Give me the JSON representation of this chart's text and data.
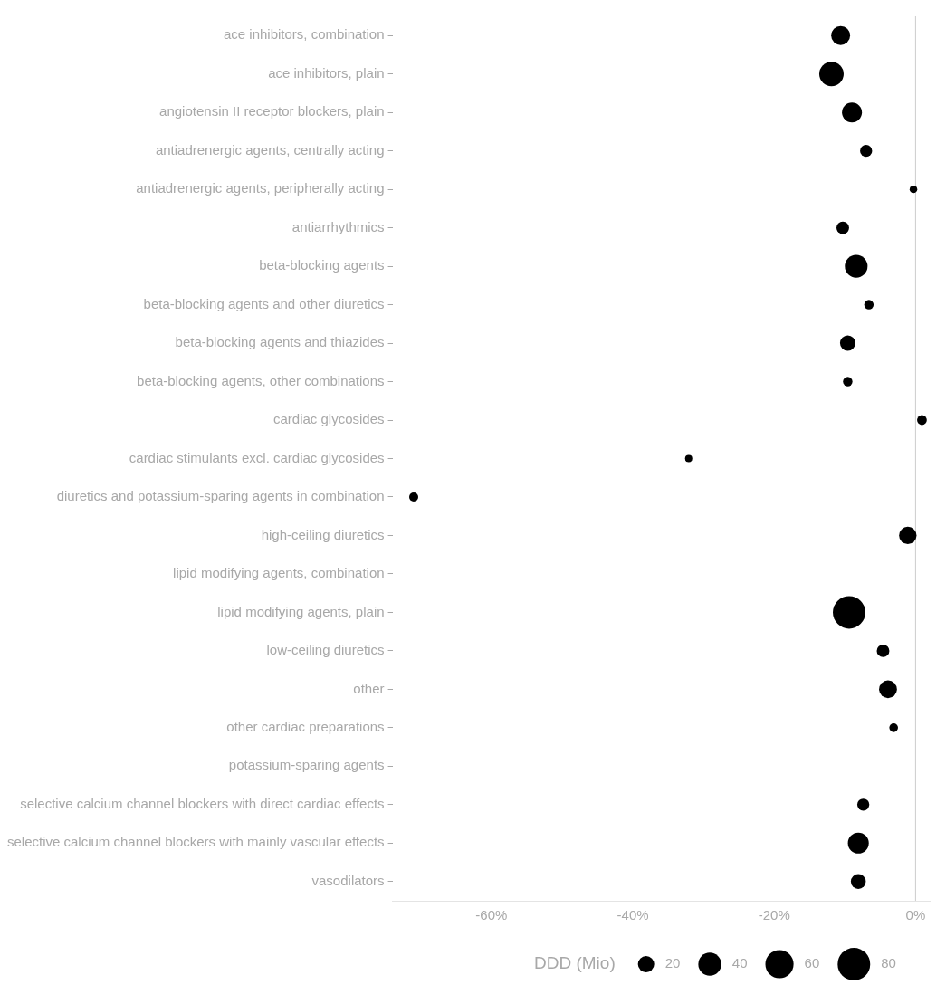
{
  "chart_data": {
    "type": "bubble",
    "categories": [
      "ace inhibitors, combination",
      "ace inhibitors, plain",
      "angiotensin II receptor blockers, plain",
      "antiadrenergic agents, centrally acting",
      "antiadrenergic agents, peripherally acting",
      "antiarrhythmics",
      "beta-blocking agents",
      "beta-blocking agents and other diuretics",
      "beta-blocking agents and thiazides",
      "beta-blocking agents, other combinations",
      "cardiac glycosides",
      "cardiac stimulants excl. cardiac glycosides",
      "diuretics and potassium-sparing agents in combination",
      "high-ceiling diuretics",
      "lipid modifying agents, combination",
      "lipid modifying agents, plain",
      "low-ceiling diuretics",
      "other",
      "other cardiac preparations",
      "potassium-sparing agents",
      "selective calcium channel blockers with direct cardiac effects",
      "selective calcium channel blockers with mainly vascular effects",
      "vasodilators"
    ],
    "orientation": "horizontal",
    "values": [
      -10.6,
      -11.9,
      -9,
      -7,
      -0.3,
      -10.3,
      -8.4,
      -6.6,
      -9.6,
      -9.6,
      0.9,
      -32.1,
      -71,
      -1.1,
      null,
      -9.4,
      -4.6,
      -3.9,
      -3.1,
      null,
      -7.4,
      -8.1,
      -8.1
    ],
    "sizes": [
      27,
      45,
      30,
      11,
      4.4,
      12,
      39,
      6.7,
      18,
      6.7,
      7.2,
      4,
      6.2,
      23,
      null,
      80,
      12,
      24,
      5.7,
      null,
      11,
      33,
      17
    ],
    "size_legend": [
      20,
      40,
      60,
      80
    ],
    "color": "#000000",
    "legend_title": "DDD (Mio)",
    "xlim": [
      -74,
      2
    ],
    "xticks": [
      {
        "value": -60,
        "label": "-60%"
      },
      {
        "value": -40,
        "label": "-40%"
      },
      {
        "value": -20,
        "label": "-20%"
      },
      {
        "value": 0,
        "label": "0%"
      }
    ],
    "ref_lines": [
      {
        "axis": "x",
        "value": 0,
        "color": "#cccccc"
      }
    ],
    "grid": false
  }
}
